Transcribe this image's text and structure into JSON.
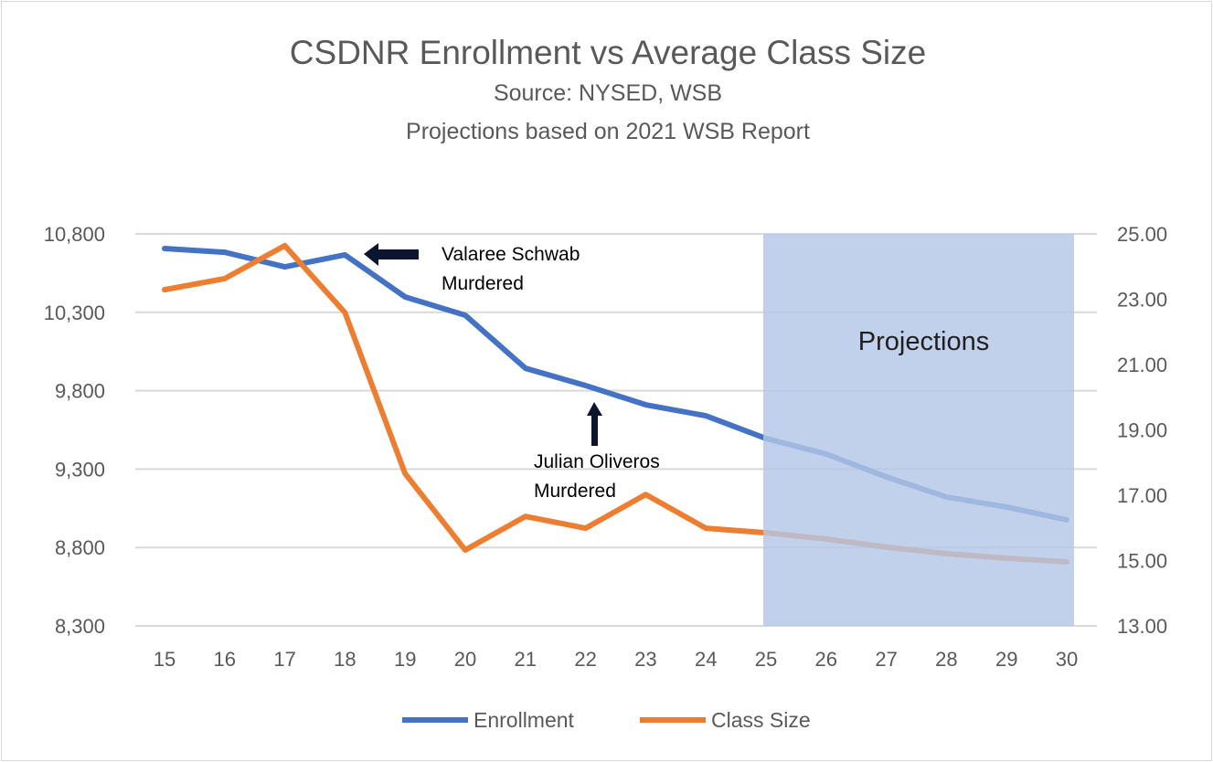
{
  "chart_data": {
    "type": "line",
    "title": "CSDNR Enrollment vs Average Class Size",
    "subtitles": [
      "Source: NYSED, WSB",
      "Projections based on 2021 WSB Report"
    ],
    "categories": [
      "15",
      "16",
      "17",
      "18",
      "19",
      "20",
      "21",
      "22",
      "23",
      "24",
      "25",
      "26",
      "27",
      "28",
      "29",
      "30"
    ],
    "series": [
      {
        "name": "Enrollment",
        "axis": "left",
        "color": "#4472c4",
        "values": [
          10707,
          10683,
          10590,
          10666,
          10398,
          10281,
          9943,
          9833,
          9710,
          9640,
          9495,
          9396,
          9250,
          9122,
          9058,
          8976
        ]
      },
      {
        "name": "Class Size",
        "axis": "right",
        "color": "#ed7d31",
        "values": [
          23.29,
          23.63,
          24.64,
          22.59,
          17.66,
          15.32,
          16.35,
          15.99,
          17.02,
          15.99,
          15.85,
          15.66,
          15.41,
          15.21,
          15.07,
          14.96
        ]
      }
    ],
    "y_left": {
      "range": [
        8300,
        10800
      ],
      "ticks": [
        "8,300",
        "8,800",
        "9,300",
        "9,800",
        "10,300",
        "10,800"
      ]
    },
    "y_right": {
      "range": [
        13,
        25
      ],
      "ticks": [
        "13.00",
        "15.00",
        "17.00",
        "19.00",
        "21.00",
        "23.00",
        "25.00"
      ]
    },
    "grid": true,
    "legend": "bottom",
    "shaded_region": {
      "from": "25",
      "to": "30",
      "label": "Projections",
      "color": "#b4c7e7"
    },
    "annotations": [
      {
        "at": "18",
        "series": "Enrollment",
        "arrow": "left",
        "lines": [
          "Valaree Schwab",
          "Murdered"
        ]
      },
      {
        "at": "22",
        "series": "Enrollment",
        "arrow": "up",
        "lines": [
          "Julian Oliveros",
          "Murdered"
        ]
      }
    ]
  }
}
